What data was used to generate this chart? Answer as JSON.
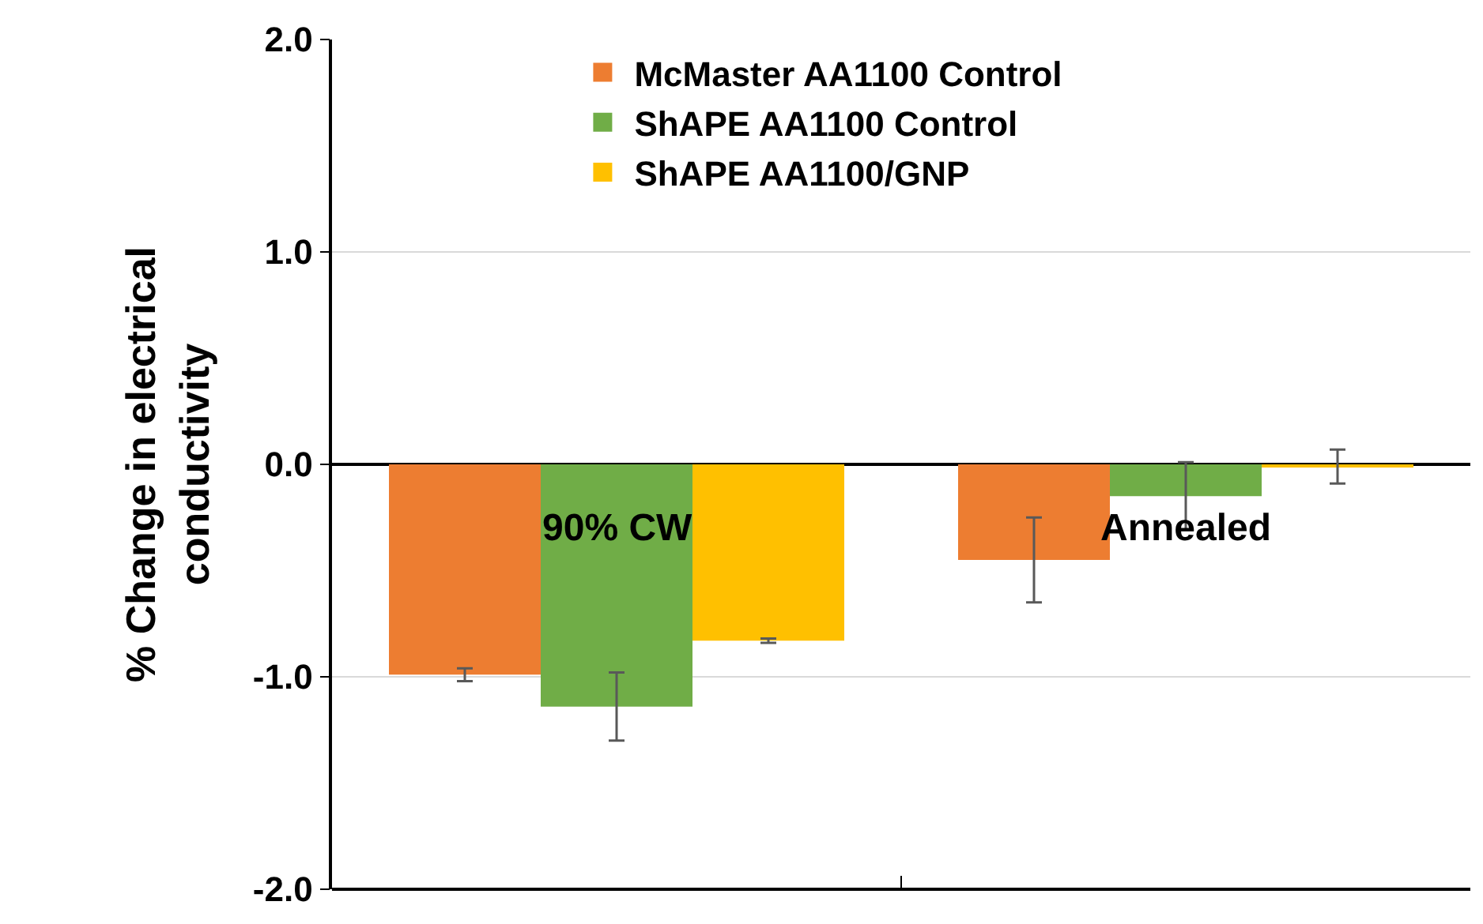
{
  "chart_data": {
    "type": "bar",
    "ylabel": "% Change in electrical conductivity",
    "categories": [
      "90% CW",
      "Annealed"
    ],
    "series": [
      {
        "name": "McMaster AA1100 Control",
        "color": "#ed7d31",
        "values": [
          -0.99,
          -0.45
        ],
        "errors": [
          0.03,
          0.2
        ]
      },
      {
        "name": "ShAPE AA1100 Control",
        "color": "#70ad47",
        "values": [
          -1.14,
          -0.15
        ],
        "errors": [
          0.16,
          0.16
        ]
      },
      {
        "name": "ShAPE AA1100/GNP",
        "color": "#ffc000",
        "values": [
          -0.83,
          -0.01
        ],
        "errors": [
          0.01,
          0.08
        ]
      }
    ],
    "ylim": [
      -2.0,
      2.0
    ],
    "yticks": [
      {
        "value": -2,
        "label": "-2.0"
      },
      {
        "value": -1,
        "label": "-1.0"
      },
      {
        "value": 0,
        "label": "0.0"
      },
      {
        "value": 1,
        "label": "1.0"
      },
      {
        "value": 2,
        "label": "2.0"
      }
    ],
    "grid": "y",
    "legend": "top",
    "tick_labels": "y"
  }
}
